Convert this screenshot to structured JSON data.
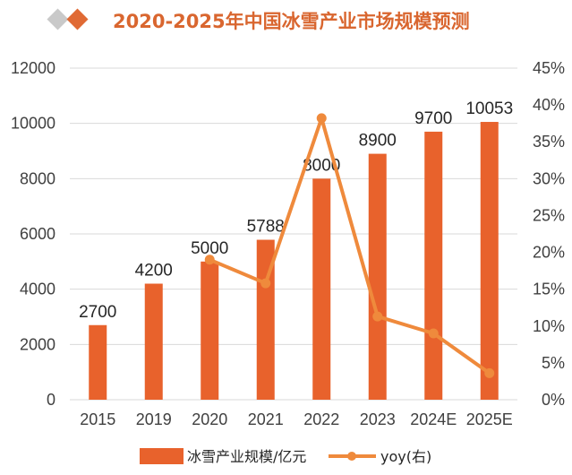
{
  "title": "2020-2025年中国冰雪产业市场规模预测",
  "colors": {
    "bar": "#e8622c",
    "line": "#ef8a3c",
    "title": "#d9662f",
    "diamond_light": "#c9c9c9",
    "diamond_dark": "#e06a34",
    "grid": "#d9d9d9"
  },
  "legend": {
    "bar_label": "冰雪产业规模/亿元",
    "line_label": "yoy(右)"
  },
  "chart_data": {
    "type": "bar+line",
    "categories": [
      "2015",
      "2019",
      "2020",
      "2021",
      "2022",
      "2023",
      "2024E",
      "2025E"
    ],
    "series": [
      {
        "name": "冰雪产业规模/亿元",
        "type": "bar",
        "axis": "left",
        "values": [
          2700,
          4200,
          5000,
          5788,
          8000,
          8900,
          9700,
          10053
        ],
        "labels": [
          "2700",
          "4200",
          "5000",
          "5788",
          "8000",
          "8900",
          "9700",
          "10053"
        ]
      },
      {
        "name": "yoy(右)",
        "type": "line",
        "axis": "right",
        "values": [
          null,
          null,
          19.0,
          15.8,
          38.2,
          11.3,
          9.0,
          3.6
        ]
      }
    ],
    "left_axis": {
      "min": 0,
      "max": 12000,
      "step": 2000,
      "ticks": [
        "0",
        "2000",
        "4000",
        "6000",
        "8000",
        "10000",
        "12000"
      ]
    },
    "right_axis": {
      "min": 0,
      "max": 45,
      "step": 5,
      "ticks": [
        "0%",
        "5%",
        "10%",
        "15%",
        "20%",
        "25%",
        "30%",
        "35%",
        "40%",
        "45%"
      ]
    },
    "grid": true,
    "legend_position": "bottom"
  }
}
